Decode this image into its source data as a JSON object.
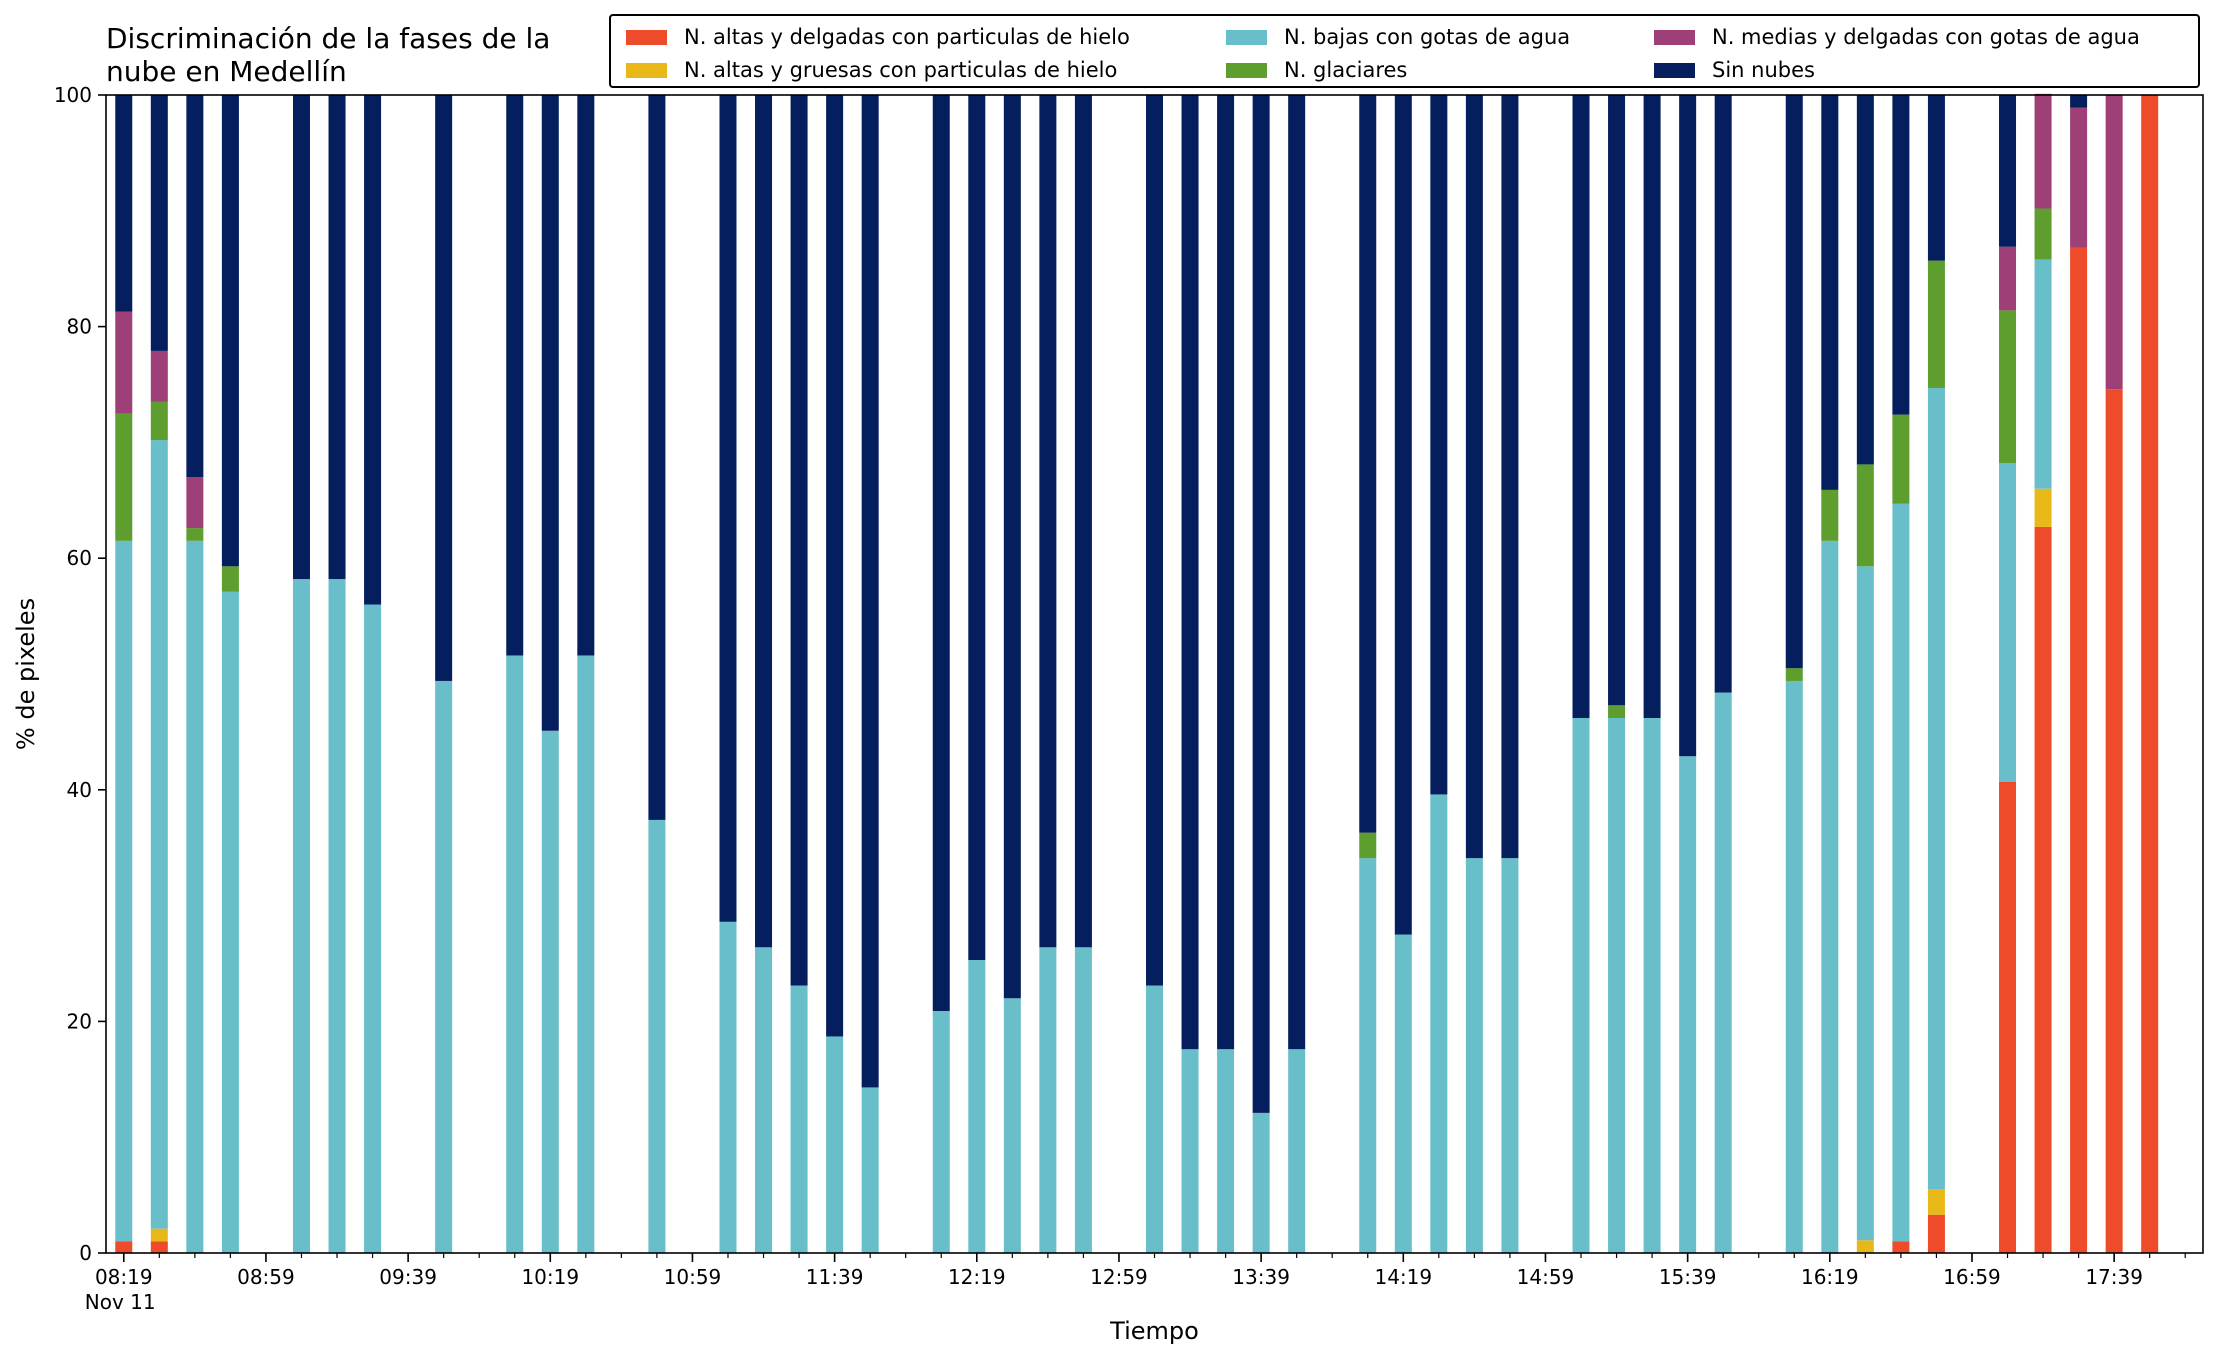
{
  "chart_data": {
    "type": "bar",
    "stacked": true,
    "title": "Discriminación de la fases de la\nnube en Medellín",
    "xlabel": "Tiempo",
    "ylabel": "% de pixeles",
    "ylim": [
      0,
      100
    ],
    "yticks": [
      0,
      20,
      40,
      60,
      80,
      100
    ],
    "xlim": [
      "08:14",
      "18:04"
    ],
    "x_tick_labels": [
      "08:19",
      "08:59",
      "09:39",
      "10:19",
      "10:59",
      "11:39",
      "12:19",
      "12:59",
      "13:39",
      "14:19",
      "14:59",
      "15:39",
      "16:19",
      "16:59",
      "17:39"
    ],
    "x_sublabel": "Nov 11",
    "legend_position": "top-right",
    "x": [
      "08:19",
      "08:29",
      "08:39",
      "08:49",
      "09:09",
      "09:19",
      "09:29",
      "09:49",
      "10:09",
      "10:19",
      "10:29",
      "10:49",
      "11:09",
      "11:19",
      "11:29",
      "11:39",
      "11:49",
      "12:09",
      "12:19",
      "12:29",
      "12:39",
      "12:49",
      "13:09",
      "13:19",
      "13:29",
      "13:39",
      "13:49",
      "14:09",
      "14:19",
      "14:29",
      "14:39",
      "14:49",
      "15:09",
      "15:19",
      "15:29",
      "15:39",
      "15:49",
      "16:09",
      "16:19",
      "16:29",
      "16:39",
      "16:49",
      "17:09",
      "17:19",
      "17:29",
      "17:39",
      "17:49"
    ],
    "series": [
      {
        "name": "N. altas y delgadas con particulas de hielo",
        "color": "#ee4b2b",
        "values": [
          1,
          1,
          0,
          0,
          0,
          0,
          0,
          0,
          0,
          0,
          0,
          0,
          0,
          0,
          0,
          0,
          0,
          0,
          0,
          0,
          0,
          0,
          0,
          0,
          0,
          0,
          0,
          0,
          0,
          0,
          0,
          0,
          0,
          0,
          0,
          0,
          0,
          0,
          0,
          0,
          1,
          3.3,
          40.7,
          62.7,
          86.8,
          74.6,
          100
        ]
      },
      {
        "name": "N. altas y gruesas con particulas de hielo",
        "color": "#e8b818",
        "values": [
          0,
          1.1,
          0,
          0,
          0,
          0,
          0,
          0,
          0,
          0,
          0,
          0,
          0,
          0,
          0,
          0,
          0,
          0,
          0,
          0,
          0,
          0,
          0,
          0,
          0,
          0,
          0,
          0,
          0,
          0,
          0,
          0,
          0,
          0,
          0,
          0,
          0,
          0,
          0,
          1.1,
          0,
          2.2,
          0,
          3.3,
          0,
          0,
          0
        ]
      },
      {
        "name": "N. bajas con gotas de agua",
        "color": "#68bfc9",
        "values": [
          60.5,
          68.1,
          61.5,
          57.1,
          58.2,
          58.2,
          56,
          49.4,
          51.6,
          45.1,
          51.6,
          37.4,
          28.6,
          26.4,
          23.1,
          18.7,
          14.3,
          20.9,
          25.3,
          22,
          26.4,
          26.4,
          23.1,
          17.6,
          17.6,
          12.1,
          17.6,
          34.1,
          27.5,
          39.6,
          34.1,
          34.1,
          46.2,
          46.2,
          46.2,
          42.9,
          48.4,
          49.4,
          61.5,
          58.2,
          63.7,
          69.2,
          27.5,
          19.8,
          0,
          0,
          0
        ]
      },
      {
        "name": "N. glaciares",
        "color": "#5d9e2e",
        "values": [
          11,
          3.3,
          1.1,
          2.2,
          0,
          0,
          0,
          0,
          0,
          0,
          0,
          0,
          0,
          0,
          0,
          0,
          0,
          0,
          0,
          0,
          0,
          0,
          0,
          0,
          0,
          0,
          0,
          2.2,
          0,
          0,
          0,
          0,
          0,
          1.1,
          0,
          0,
          0,
          1.1,
          4.4,
          8.8,
          7.7,
          11,
          13.2,
          4.4,
          0,
          0,
          0
        ]
      },
      {
        "name": "N. medias y delgadas con gotas de agua",
        "color": "#9e3f77",
        "values": [
          8.8,
          4.4,
          4.4,
          0,
          0,
          0,
          0,
          0,
          0,
          0,
          0,
          0,
          0,
          0,
          0,
          0,
          0,
          0,
          0,
          0,
          0,
          0,
          0,
          0,
          0,
          0,
          0,
          0,
          0,
          0,
          0,
          0,
          0,
          0,
          0,
          0,
          0,
          0,
          0,
          0,
          0,
          0,
          5.5,
          9.9,
          12.1,
          25.4,
          0
        ]
      },
      {
        "name": "Sin nubes",
        "color": "#041e5e",
        "values": [
          18.7,
          22.1,
          33,
          40.7,
          41.8,
          41.8,
          44,
          50.6,
          48.4,
          54.9,
          48.4,
          62.6,
          71.4,
          73.6,
          76.9,
          81.3,
          85.7,
          79.1,
          74.7,
          78,
          73.6,
          73.6,
          76.9,
          82.4,
          82.4,
          87.9,
          82.4,
          63.7,
          72.5,
          60.4,
          65.9,
          65.9,
          53.8,
          52.7,
          53.8,
          57.1,
          51.6,
          49.5,
          34.1,
          31.9,
          27.6,
          14.3,
          13.1,
          0,
          1.1,
          0,
          0
        ]
      }
    ]
  }
}
